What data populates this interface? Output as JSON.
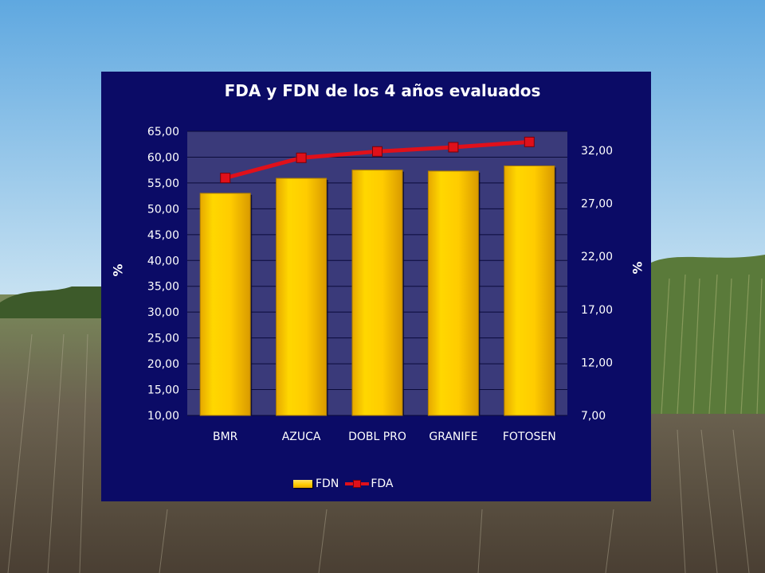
{
  "chart_data": {
    "type": "bar+line",
    "title": "FDA y FDN de los 4 años evaluados",
    "categories": [
      "BMR",
      "AZUCA",
      "DOBL PRO",
      "GRANIFE",
      "FOTOSEN"
    ],
    "series": [
      {
        "name": "FDN",
        "type": "bar",
        "axis": "left",
        "values": [
          53.0,
          55.9,
          57.5,
          57.3,
          58.3
        ],
        "color": "#ffcc00"
      },
      {
        "name": "FDA",
        "type": "line",
        "axis": "right",
        "values": [
          29.4,
          31.3,
          31.9,
          32.3,
          32.8
        ],
        "color": "#e0101a"
      }
    ],
    "ylabel_left": "%",
    "ylabel_right": "%",
    "ylim_left": [
      10,
      65
    ],
    "yticks_left": [
      "10,00",
      "15,00",
      "20,00",
      "25,00",
      "30,00",
      "35,00",
      "40,00",
      "45,00",
      "50,00",
      "55,00",
      "60,00",
      "65,00"
    ],
    "ylim_right": [
      7,
      33.8
    ],
    "yticks_right": [
      "7,00",
      "12,00",
      "17,00",
      "22,00",
      "27,00",
      "32,00"
    ],
    "grid": true,
    "legend_position": "bottom",
    "plot_background": "#3a3a7a",
    "panel_background": "#0b0b66"
  }
}
